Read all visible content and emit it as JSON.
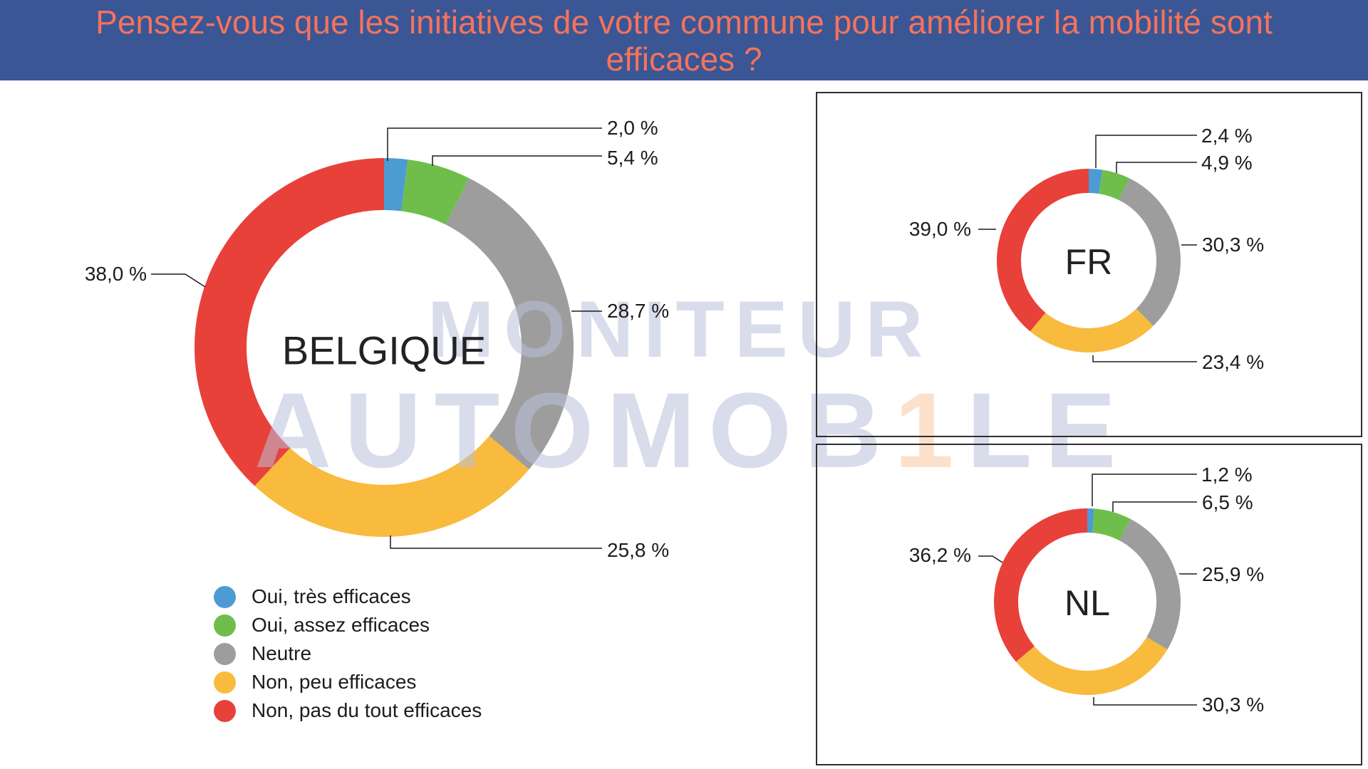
{
  "header": {
    "title_line1": "Pensez-vous que les initiatives de votre commune pour améliorer la mobilité sont",
    "title_line2": "efficaces ?",
    "bg_color": "#3a5695",
    "text_color": "#f4735c"
  },
  "watermark": {
    "line1": "MONITEUR",
    "line2_pre": "AUTOMOB",
    "line2_one": "1",
    "line2_post": "LE"
  },
  "palette": {
    "blue": "#4d9bd3",
    "green": "#6fbe4c",
    "gray": "#9d9d9d",
    "yellow": "#f8bb3d",
    "red": "#e8413a"
  },
  "legend": {
    "items": [
      {
        "label": "Oui, très efficaces",
        "color": "#4d9bd3"
      },
      {
        "label": "Oui, assez efficaces",
        "color": "#6fbe4c"
      },
      {
        "label": "Neutre",
        "color": "#9d9d9d"
      },
      {
        "label": "Non, peu efficaces",
        "color": "#f8bb3d"
      },
      {
        "label": "Non, pas du tout efficaces",
        "color": "#e8413a"
      }
    ]
  },
  "chart_data": [
    {
      "type": "donut",
      "title": "BELGIQUE",
      "categories": [
        "Oui, très efficaces",
        "Oui, assez efficaces",
        "Neutre",
        "Non, peu efficaces",
        "Non, pas du tout efficaces"
      ],
      "values": [
        2.0,
        5.4,
        28.7,
        25.8,
        38.0
      ],
      "labels": [
        "2,0 %",
        "5,4 %",
        "28,7 %",
        "25,8 %",
        "38,0 %"
      ],
      "colors": [
        "#4d9bd3",
        "#6fbe4c",
        "#9d9d9d",
        "#f8bb3d",
        "#e8413a"
      ],
      "start_angle_deg": 0,
      "direction": "clockwise",
      "legend_position": "bottom-left"
    },
    {
      "type": "donut",
      "title": "FR",
      "categories": [
        "Oui, très efficaces",
        "Oui, assez efficaces",
        "Neutre",
        "Non, peu efficaces",
        "Non, pas du tout efficaces"
      ],
      "values": [
        2.4,
        4.9,
        30.3,
        23.4,
        39.0
      ],
      "labels": [
        "2,4 %",
        "4,9 %",
        "30,3 %",
        "23,4 %",
        "39,0 %"
      ],
      "colors": [
        "#4d9bd3",
        "#6fbe4c",
        "#9d9d9d",
        "#f8bb3d",
        "#e8413a"
      ],
      "start_angle_deg": 0,
      "direction": "clockwise"
    },
    {
      "type": "donut",
      "title": "NL",
      "categories": [
        "Oui, très efficaces",
        "Oui, assez efficaces",
        "Neutre",
        "Non, peu efficaces",
        "Non, pas du tout efficaces"
      ],
      "values": [
        1.2,
        6.5,
        25.9,
        30.3,
        36.2
      ],
      "labels": [
        "1,2 %",
        "6,5 %",
        "25,9 %",
        "30,3 %",
        "36,2 %"
      ],
      "colors": [
        "#4d9bd3",
        "#6fbe4c",
        "#9d9d9d",
        "#f8bb3d",
        "#e8413a"
      ],
      "start_angle_deg": 0,
      "direction": "clockwise"
    }
  ]
}
